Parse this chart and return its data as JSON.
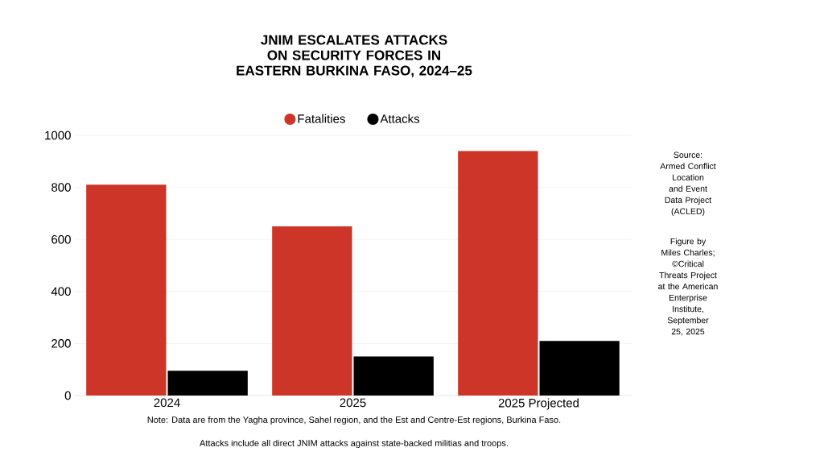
{
  "chart_data": {
    "type": "bar",
    "title": "JNIM ESCALATES ATTACKS ON SECURITY FORCES IN EASTERN BURKINA FASO, 2024–25",
    "categories": [
      "2024",
      "2025",
      "2025 Projected"
    ],
    "series": [
      {
        "name": "Fatalities",
        "color": "#cc3527",
        "values": [
          810,
          650,
          940
        ]
      },
      {
        "name": "Attacks",
        "color": "#000000",
        "values": [
          95,
          150,
          210
        ]
      }
    ],
    "ylim": [
      0,
      1000
    ],
    "yticks": [
      0,
      200,
      400,
      600,
      800,
      1000
    ],
    "grid": "y",
    "legend": "top",
    "annotations": [
      "Source: Armed Conflict Location and Event Data Project (ACLED)",
      "Figure by Miles Charles; ©Critical Threats Project at the American Enterprise Institute, September 25, 2025",
      "Note: Data are from the Yagha province, Sahel region, and the Est and Centre-Est regions, Burkina Faso.",
      "Attacks include all direct JNIM attacks against state-backed militias and troops."
    ]
  }
}
